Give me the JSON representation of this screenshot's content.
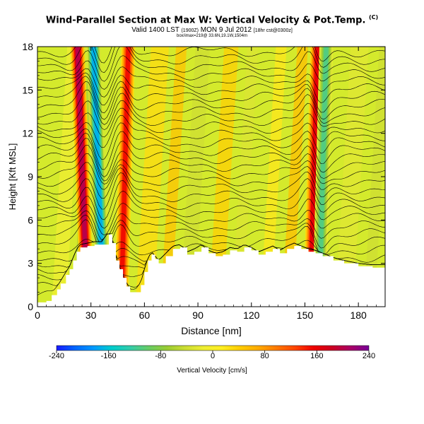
{
  "header": {
    "title": "Wind-Parallel Section at Max W: Vertical Velocity & Pot.Temp.",
    "title_mark": "(C)",
    "subtitle_main": "Valid 1400 LST",
    "subtitle_small1": "(1900Z)",
    "subtitle_date": "MON 9 Jul 2012",
    "subtitle_small2": "[18hr cst@0300z]",
    "info": "box/imax=219@ 33.6N,19.1W,1504m"
  },
  "chart_data": {
    "type": "heatmap",
    "xlabel": "Distance [nm]",
    "ylabel": "Height [Kft MSL]",
    "xlim": [
      0,
      195
    ],
    "ylim": [
      0,
      18
    ],
    "x_ticks": [
      "0",
      "30",
      "60",
      "90",
      "120",
      "150",
      "180"
    ],
    "y_ticks": [
      "0",
      "3",
      "6",
      "9",
      "12",
      "15",
      "18"
    ],
    "colorbar": {
      "label": "Vertical Velocity [cm/s]",
      "min": -240,
      "max": 240,
      "tick_labels": [
        "-240",
        "-160",
        "-80",
        "0",
        "80",
        "160",
        "240"
      ],
      "colors": [
        "#1a1aff",
        "#0066ff",
        "#0099ff",
        "#00cccc",
        "#33ccaa",
        "#66cc66",
        "#99cc33",
        "#ccdd33",
        "#eeee33",
        "#ffee22",
        "#ffcc00",
        "#ffaa00",
        "#ff7700",
        "#ff4400",
        "#ee0000",
        "#cc0022",
        "#aa0066",
        "#770099"
      ]
    },
    "terrain_height": [
      [
        0,
        0.3
      ],
      [
        5,
        0.4
      ],
      [
        8,
        0.8
      ],
      [
        11,
        1.2
      ],
      [
        13,
        1.6
      ],
      [
        16,
        2.2
      ],
      [
        18,
        2.6
      ],
      [
        20,
        3.2
      ],
      [
        22,
        3.8
      ],
      [
        24,
        4.1
      ],
      [
        28,
        4.2
      ],
      [
        32,
        4.3
      ],
      [
        36,
        4.3
      ],
      [
        40,
        5.0
      ],
      [
        42,
        4.4
      ],
      [
        44,
        3.2
      ],
      [
        46,
        2.6
      ],
      [
        48,
        2.0
      ],
      [
        50,
        1.4
      ],
      [
        52,
        1.0
      ],
      [
        55,
        1.0
      ],
      [
        58,
        1.5
      ],
      [
        60,
        2.4
      ],
      [
        62,
        3.2
      ],
      [
        64,
        3.6
      ],
      [
        66,
        3.3
      ],
      [
        68,
        3.0
      ],
      [
        72,
        3.5
      ],
      [
        76,
        4.0
      ],
      [
        80,
        4.1
      ],
      [
        84,
        3.6
      ],
      [
        88,
        3.8
      ],
      [
        92,
        4.1
      ],
      [
        96,
        3.7
      ],
      [
        100,
        3.5
      ],
      [
        104,
        3.6
      ],
      [
        108,
        3.9
      ],
      [
        112,
        3.8
      ],
      [
        116,
        4.1
      ],
      [
        120,
        3.9
      ],
      [
        124,
        3.6
      ],
      [
        128,
        3.8
      ],
      [
        132,
        4.0
      ],
      [
        136,
        3.7
      ],
      [
        140,
        4.0
      ],
      [
        144,
        4.2
      ],
      [
        148,
        4.0
      ],
      [
        152,
        3.8
      ],
      [
        156,
        3.7
      ],
      [
        160,
        3.5
      ],
      [
        166,
        3.2
      ],
      [
        172,
        3.0
      ],
      [
        180,
        2.8
      ],
      [
        188,
        2.7
      ],
      [
        195,
        2.7
      ]
    ],
    "updraft_cores": [
      {
        "x": 28,
        "peak_cm_s": 200
      },
      {
        "x": 47,
        "peak_cm_s": 150
      },
      {
        "x": 153,
        "peak_cm_s": 160
      }
    ],
    "downdraft_cores": [
      {
        "x": 37,
        "peak_cm_s": -170
      },
      {
        "x": 158,
        "peak_cm_s": -110
      }
    ],
    "theta_contour_count": 33
  }
}
